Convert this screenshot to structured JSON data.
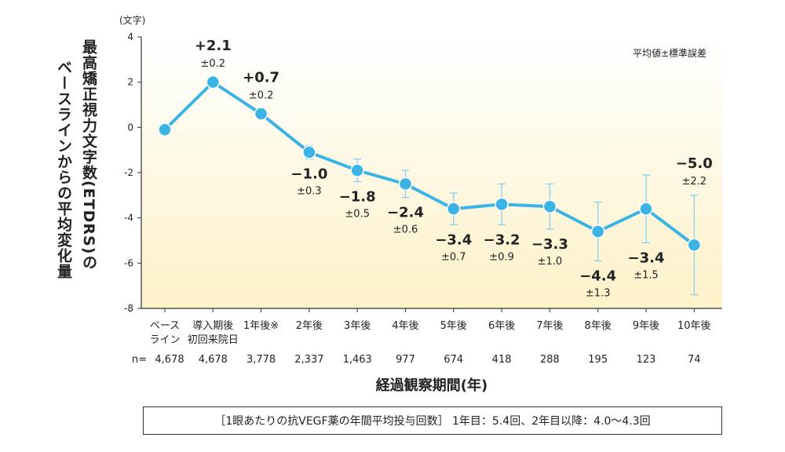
{
  "chart_data": {
    "type": "line",
    "y_unit": "(文字)",
    "ylabel_line1": "最高矯正視力文字数(ETDRS)の",
    "ylabel_line2": "ベースラインからの平均変化量",
    "xlabel": "経過観察期間(年)",
    "legend_note": "平均値±標準誤差",
    "ylim": [
      -8,
      4
    ],
    "yticks": [
      "4",
      "2",
      "0",
      "-2",
      "-4",
      "-6",
      "-8"
    ],
    "categories": [
      {
        "line1": "ベース",
        "line2": "ライン"
      },
      {
        "line1": "導入期後",
        "line2": "初回来院日"
      },
      {
        "line1": "1年後※",
        "line2": ""
      },
      {
        "line1": "2年後",
        "line2": ""
      },
      {
        "line1": "3年後",
        "line2": ""
      },
      {
        "line1": "4年後",
        "line2": ""
      },
      {
        "line1": "5年後",
        "line2": ""
      },
      {
        "line1": "6年後",
        "line2": ""
      },
      {
        "line1": "7年後",
        "line2": ""
      },
      {
        "line1": "8年後",
        "line2": ""
      },
      {
        "line1": "9年後",
        "line2": ""
      },
      {
        "line1": "10年後",
        "line2": ""
      }
    ],
    "n_prefix": "n=",
    "n_values": [
      "4,678",
      "4,678",
      "3,778",
      "2,337",
      "1,463",
      "977",
      "674",
      "418",
      "288",
      "195",
      "123",
      "74"
    ],
    "values": [
      0,
      2.1,
      0.7,
      -1.0,
      -1.8,
      -2.4,
      -3.4,
      -3.2,
      -3.3,
      -4.4,
      -3.4,
      -5.0
    ],
    "plot_values": [
      -0.1,
      2.0,
      0.6,
      -1.1,
      -1.9,
      -2.5,
      -3.6,
      -3.4,
      -3.5,
      -4.6,
      -3.6,
      -5.2
    ],
    "errors": [
      0,
      0.2,
      0.2,
      0.3,
      0.5,
      0.6,
      0.7,
      0.9,
      1.0,
      1.3,
      1.5,
      2.2
    ],
    "value_labels": [
      "",
      "+2.1",
      "+0.7",
      "−1.0",
      "−1.8",
      "−2.4",
      "−3.4",
      "−3.2",
      "−3.3",
      "−4.4",
      "−3.4",
      "−5.0"
    ],
    "error_labels": [
      "",
      "±0.2",
      "±0.2",
      "±0.3",
      "±0.5",
      "±0.6",
      "±0.7",
      "±0.9",
      "±1.0",
      "±1.3",
      "±1.5",
      "±2.2"
    ],
    "label_position": [
      "none",
      "above",
      "above",
      "below",
      "below",
      "below",
      "below",
      "below",
      "below",
      "below",
      "below",
      "above"
    ],
    "colors": {
      "line": "#3bb4e5",
      "marker": "#3bb4e5",
      "error": "#7fcdee",
      "bg_top": "#ffffff",
      "bg_bottom": "#fdf1c8"
    }
  },
  "footnote": "［1眼あたりの抗VEGF薬の年間平均投与回数］ 1年目：5.4回、2年目以降：4.0〜4.3回"
}
